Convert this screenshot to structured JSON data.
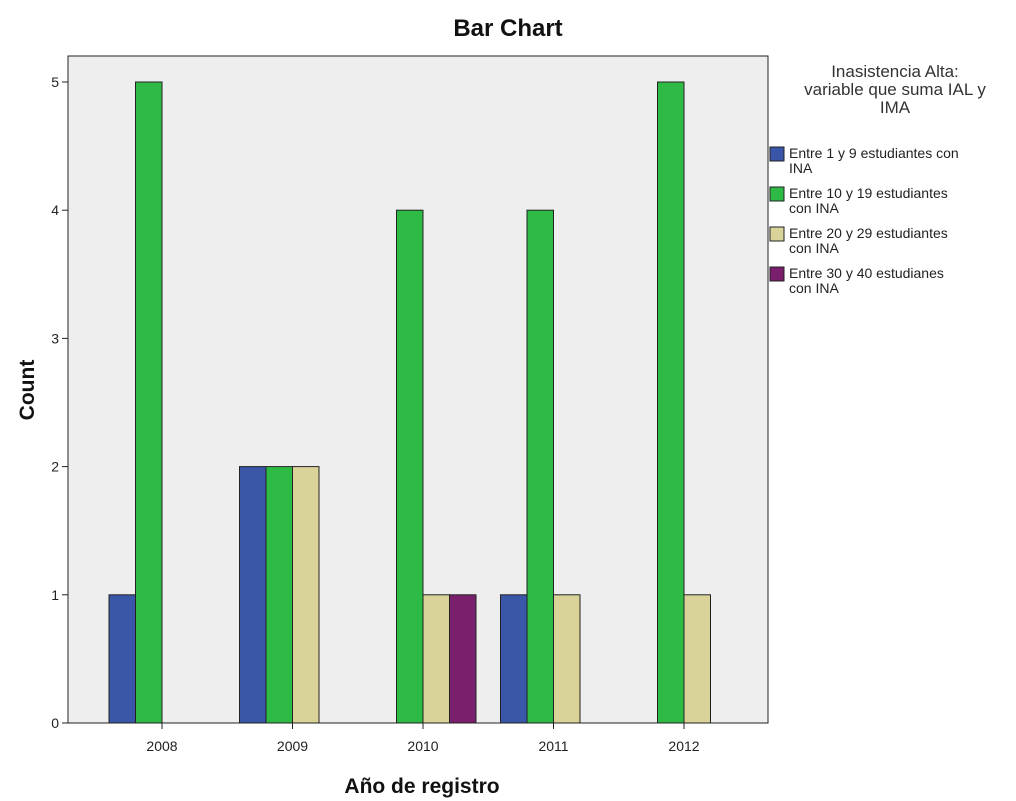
{
  "colors": {
    "plot_background": "#eeeeee",
    "series": [
      "#3a56a8",
      "#2dbb45",
      "#d9d39a",
      "#7a1f6e"
    ]
  },
  "chart_data": {
    "type": "bar",
    "title": "Bar Chart",
    "xlabel": "Año de registro",
    "ylabel": "Count",
    "categories": [
      "2008",
      "2009",
      "2010",
      "2011",
      "2012"
    ],
    "ylim": [
      0,
      5
    ],
    "yticks": [
      0,
      1,
      2,
      3,
      4,
      5
    ],
    "grid": false,
    "legend": {
      "title_lines": [
        "Inasistencia Alta:",
        "variable que suma IAL y",
        "IMA"
      ],
      "placement": "right"
    },
    "series": [
      {
        "name": "Entre 1 y 9 estudiantes con INA",
        "label_lines": [
          "Entre 1 y 9 estudiantes con",
          "INA"
        ],
        "values": [
          1,
          2,
          null,
          1,
          null
        ]
      },
      {
        "name": "Entre 10 y 19 estudiantes con INA",
        "label_lines": [
          "Entre 10 y 19 estudiantes",
          "con INA"
        ],
        "values": [
          5,
          2,
          4,
          4,
          5
        ]
      },
      {
        "name": "Entre 20 y 29 estudiantes con INA",
        "label_lines": [
          "Entre 20 y 29 estudiantes",
          "con INA"
        ],
        "values": [
          null,
          2,
          1,
          1,
          1
        ]
      },
      {
        "name": "Entre 30 y 40 estudianes con INA",
        "label_lines": [
          "Entre 30 y 40 estudianes",
          "con INA"
        ],
        "values": [
          null,
          null,
          1,
          null,
          null
        ]
      }
    ]
  }
}
